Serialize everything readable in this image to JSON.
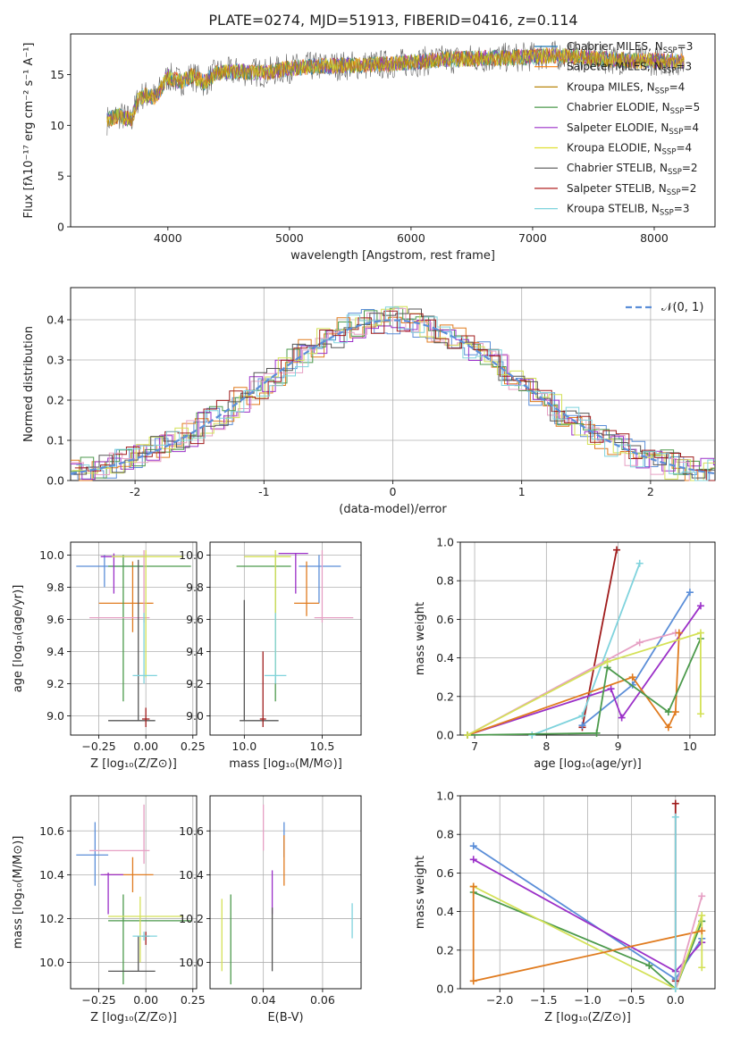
{
  "figure": {
    "title": "PLATE=0274, MJD=51913, FIBERID=0416, z=0.114"
  },
  "chart_data": [
    {
      "id": "spectrum",
      "type": "line",
      "xlabel": "wavelength [Angstrom, rest frame]",
      "ylabel": "Flux [fλ10⁻¹⁷ erg cm⁻² s⁻¹ A⁻¹]",
      "xlim": [
        3200,
        8500
      ],
      "ylim": [
        0,
        19
      ],
      "xticks": [
        4000,
        5000,
        6000,
        7000,
        8000
      ],
      "yticks": [
        0,
        5,
        10,
        15
      ],
      "grid": false,
      "legend_position": "right",
      "series": [
        {
          "name": "Chabrier MILES, N_SSP=3",
          "color": "#1f77b4"
        },
        {
          "name": "Salpeter MILES, N_SSP=3",
          "color": "#ff7f0e"
        },
        {
          "name": "Kroupa MILES, N_SSP=4",
          "color": "#b8860b"
        },
        {
          "name": "Chabrier ELODIE, N_SSP=5",
          "color": "#4c9a4c"
        },
        {
          "name": "Salpeter ELODIE, N_SSP=4",
          "color": "#9b30c8"
        },
        {
          "name": "Kroupa ELODIE, N_SSP=4",
          "color": "#e0e030"
        },
        {
          "name": "Chabrier STELIB, N_SSP=2",
          "color": "#555555"
        },
        {
          "name": "Salpeter STELIB, N_SSP=2",
          "color": "#b22222"
        },
        {
          "name": "Kroupa STELIB, N_SSP=3",
          "color": "#7fd3dd"
        }
      ],
      "continuum_points": [
        [
          3500,
          10.5
        ],
        [
          3600,
          11.0
        ],
        [
          3700,
          10.5
        ],
        [
          3750,
          12.5
        ],
        [
          3800,
          13.0
        ],
        [
          3900,
          12.8
        ],
        [
          4000,
          14.8
        ],
        [
          4100,
          14.3
        ],
        [
          4200,
          14.9
        ],
        [
          4300,
          14.2
        ],
        [
          4400,
          15.2
        ],
        [
          4600,
          15.3
        ],
        [
          4800,
          15.2
        ],
        [
          5000,
          15.6
        ],
        [
          5200,
          15.8
        ],
        [
          5500,
          15.9
        ],
        [
          5800,
          16.0
        ],
        [
          6000,
          16.2
        ],
        [
          6300,
          16.5
        ],
        [
          6600,
          16.6
        ],
        [
          6900,
          16.7
        ],
        [
          7200,
          16.9
        ],
        [
          7500,
          16.6
        ],
        [
          7800,
          16.4
        ],
        [
          8200,
          16.3
        ]
      ]
    },
    {
      "id": "residuals",
      "type": "histogram",
      "xlabel": "(data-model)/error",
      "ylabel": "Normed distribution",
      "xlim": [
        -2.5,
        2.5
      ],
      "ylim": [
        0,
        0.48
      ],
      "xticks": [
        -2,
        -1,
        0,
        1,
        2
      ],
      "yticks": [
        0.0,
        0.1,
        0.2,
        0.3,
        0.4
      ],
      "grid": true,
      "legend": "𝒩(0, 1)",
      "legend_position": "top-right",
      "reference_curve": {
        "type": "gaussian",
        "mean": 0,
        "sigma": 1,
        "color": "#5b8ed8"
      },
      "hist_colors": [
        "#5b8ed8",
        "#e07b1f",
        "#4c9a4c",
        "#9b30c8",
        "#e6a0c4",
        "#d4e157",
        "#555555",
        "#a01c1c",
        "#7fd3dd"
      ]
    },
    {
      "id": "age_vs_Z",
      "type": "errorbar",
      "xlabel": "Z [log₁₀(Z/Z⊙)]",
      "ylabel": "age  [log₁₀(age/yr)]",
      "xlim": [
        -0.4,
        0.27
      ],
      "ylim": [
        8.88,
        10.08
      ],
      "xticks": [
        -0.25,
        0.0,
        0.25
      ],
      "xticklabels": [
        "−0.25",
        "0.00",
        "0.25"
      ],
      "yticks": [
        9.0,
        9.2,
        9.4,
        9.6,
        9.8,
        10.0
      ],
      "grid": true,
      "points": [
        {
          "color": "#5b8ed8",
          "x": -0.22,
          "y": 9.93,
          "x_lo": -0.37,
          "x_hi": 0.0,
          "y_lo": 9.8,
          "y_hi": 10.0
        },
        {
          "color": "#e07b1f",
          "x": -0.07,
          "y": 9.7,
          "x_lo": -0.25,
          "x_hi": 0.04,
          "y_lo": 9.52,
          "y_hi": 9.96
        },
        {
          "color": "#4c9a4c",
          "x": -0.12,
          "y": 9.93,
          "x_lo": -0.2,
          "x_hi": 0.24,
          "y_lo": 9.09,
          "y_hi": 10.0
        },
        {
          "color": "#9b30c8",
          "x": -0.17,
          "y": 9.99,
          "x_lo": -0.24,
          "x_hi": 0.0,
          "y_lo": 9.76,
          "y_hi": 10.01
        },
        {
          "color": "#e6a0c4",
          "x": -0.01,
          "y": 9.61,
          "x_lo": -0.3,
          "x_hi": 0.02,
          "y_lo": 9.58,
          "y_hi": 10.03
        },
        {
          "color": "#d4e157",
          "x": 0.0,
          "y": 9.99,
          "x_lo": -0.18,
          "x_hi": 0.2,
          "y_lo": 9.24,
          "y_hi": 10.03
        },
        {
          "color": "#555555",
          "x": -0.04,
          "y": 8.97,
          "x_lo": -0.2,
          "x_hi": 0.05,
          "y_lo": 8.97,
          "y_hi": 9.97
        },
        {
          "color": "#a01c1c",
          "x": 0.0,
          "y": 8.98,
          "x_lo": -0.02,
          "x_hi": 0.02,
          "y_lo": 8.93,
          "y_hi": 9.05
        },
        {
          "color": "#7fd3dd",
          "x": -0.01,
          "y": 9.25,
          "x_lo": -0.07,
          "x_hi": 0.06,
          "y_lo": 9.2,
          "y_hi": 9.64
        }
      ]
    },
    {
      "id": "age_vs_mass",
      "type": "errorbar",
      "xlabel": "mass [log₁₀(M/M⊙)]",
      "ylabel": "",
      "xlim": [
        9.78,
        10.75
      ],
      "ylim": [
        8.88,
        10.08
      ],
      "xticks": [
        10.0,
        10.5
      ],
      "xticklabels": [
        "10.0",
        "10.5"
      ],
      "yticks": [
        9.0,
        9.2,
        9.4,
        9.6,
        9.8,
        10.0
      ],
      "grid": true,
      "points": [
        {
          "color": "#5b8ed8",
          "x": 10.48,
          "y": 9.93,
          "x_lo": 10.35,
          "x_hi": 10.62,
          "y_lo": 9.7,
          "y_hi": 10.0
        },
        {
          "color": "#e07b1f",
          "x": 10.4,
          "y": 9.7,
          "x_lo": 10.32,
          "x_hi": 10.48,
          "y_lo": 9.62,
          "y_hi": 9.96
        },
        {
          "color": "#4c9a4c",
          "x": 10.2,
          "y": 9.93,
          "x_lo": 9.95,
          "x_hi": 10.3,
          "y_lo": 9.09,
          "y_hi": 10.0
        },
        {
          "color": "#9b30c8",
          "x": 10.33,
          "y": 10.01,
          "x_lo": 10.22,
          "x_hi": 10.41,
          "y_lo": 9.76,
          "y_hi": 10.01
        },
        {
          "color": "#e6a0c4",
          "x": 10.5,
          "y": 9.61,
          "x_lo": 10.45,
          "x_hi": 10.7,
          "y_lo": 9.58,
          "y_hi": 10.03
        },
        {
          "color": "#d4e157",
          "x": 10.2,
          "y": 9.99,
          "x_lo": 10.0,
          "x_hi": 10.3,
          "y_lo": 9.24,
          "y_hi": 10.03
        },
        {
          "color": "#555555",
          "x": 10.0,
          "y": 8.97,
          "x_lo": 9.97,
          "x_hi": 10.22,
          "y_lo": 8.97,
          "y_hi": 9.72
        },
        {
          "color": "#a01c1c",
          "x": 10.12,
          "y": 8.98,
          "x_lo": 10.1,
          "x_hi": 10.14,
          "y_lo": 8.93,
          "y_hi": 9.4
        },
        {
          "color": "#7fd3dd",
          "x": 10.2,
          "y": 9.25,
          "x_lo": 10.13,
          "x_hi": 10.27,
          "y_lo": 9.2,
          "y_hi": 9.64
        }
      ]
    },
    {
      "id": "mw_vs_age",
      "type": "line",
      "xlabel": "age  [log₁₀(age/yr)]",
      "ylabel": "mass weight",
      "xlim": [
        6.8,
        10.35
      ],
      "ylim": [
        0,
        1
      ],
      "xticks": [
        7,
        8,
        9,
        10
      ],
      "yticks": [
        0.0,
        0.2,
        0.4,
        0.6,
        0.8,
        1.0
      ],
      "grid": true,
      "series": [
        {
          "color": "#a01c1c",
          "x": [
            8.5,
            8.98
          ],
          "y": [
            0.04,
            0.96
          ]
        },
        {
          "color": "#7fd3dd",
          "x": [
            7.8,
            8.5,
            9.3
          ],
          "y": [
            0.0,
            0.1,
            0.89
          ]
        },
        {
          "color": "#5b8ed8",
          "x": [
            8.5,
            9.2,
            10.0
          ],
          "y": [
            0.05,
            0.26,
            0.74
          ]
        },
        {
          "color": "#9b30c8",
          "x": [
            6.9,
            8.9,
            9.05,
            10.15
          ],
          "y": [
            0.0,
            0.24,
            0.09,
            0.67
          ]
        },
        {
          "color": "#e6a0c4",
          "x": [
            6.9,
            9.3,
            9.8
          ],
          "y": [
            0.0,
            0.48,
            0.53
          ]
        },
        {
          "color": "#e07b1f",
          "x": [
            6.9,
            9.2,
            9.7,
            9.8,
            9.85
          ],
          "y": [
            0.0,
            0.3,
            0.04,
            0.12,
            0.53
          ]
        },
        {
          "color": "#4c9a4c",
          "x": [
            6.9,
            8.7,
            8.85,
            9.7,
            10.15
          ],
          "y": [
            0.0,
            0.01,
            0.35,
            0.12,
            0.5
          ]
        },
        {
          "color": "#d4e157",
          "x": [
            6.9,
            8.85,
            10.15,
            10.15
          ],
          "y": [
            0.0,
            0.38,
            0.53,
            0.11
          ]
        }
      ]
    },
    {
      "id": "mass_vs_Z",
      "type": "errorbar",
      "xlabel": "Z [log₁₀(Z/Z⊙)]",
      "ylabel": "mass [log₁₀(M/M⊙)]",
      "xlim": [
        -0.4,
        0.27
      ],
      "ylim": [
        9.88,
        10.76
      ],
      "xticks": [
        -0.25,
        0.0,
        0.25
      ],
      "xticklabels": [
        "−0.25",
        "0.00",
        "0.25"
      ],
      "yticks": [
        10.0,
        10.2,
        10.4,
        10.6
      ],
      "grid": true,
      "points": [
        {
          "color": "#5b8ed8",
          "x": -0.27,
          "y": 10.49,
          "x_lo": -0.37,
          "x_hi": -0.2,
          "y_lo": 10.35,
          "y_hi": 10.64
        },
        {
          "color": "#e07b1f",
          "x": -0.07,
          "y": 10.4,
          "x_lo": -0.22,
          "x_hi": 0.04,
          "y_lo": 10.32,
          "y_hi": 10.48
        },
        {
          "color": "#4c9a4c",
          "x": -0.12,
          "y": 10.19,
          "x_lo": -0.2,
          "x_hi": 0.24,
          "y_lo": 9.9,
          "y_hi": 10.31
        },
        {
          "color": "#9b30c8",
          "x": -0.2,
          "y": 10.4,
          "x_lo": -0.24,
          "x_hi": -0.12,
          "y_lo": 10.22,
          "y_hi": 10.41
        },
        {
          "color": "#e6a0c4",
          "x": -0.01,
          "y": 10.51,
          "x_lo": -0.3,
          "x_hi": 0.02,
          "y_lo": 10.45,
          "y_hi": 10.72
        },
        {
          "color": "#d4e157",
          "x": -0.03,
          "y": 10.21,
          "x_lo": -0.2,
          "x_hi": 0.2,
          "y_lo": 10.0,
          "y_hi": 10.3
        },
        {
          "color": "#555555",
          "x": -0.04,
          "y": 9.96,
          "x_lo": -0.2,
          "x_hi": 0.05,
          "y_lo": 9.96,
          "y_hi": 10.12
        },
        {
          "color": "#a01c1c",
          "x": 0.0,
          "y": 10.12,
          "x_lo": -0.02,
          "x_hi": 0.02,
          "y_lo": 10.08,
          "y_hi": 10.14
        },
        {
          "color": "#7fd3dd",
          "x": -0.01,
          "y": 10.12,
          "x_lo": -0.07,
          "x_hi": 0.06,
          "y_lo": 10.1,
          "y_hi": 10.14
        }
      ]
    },
    {
      "id": "mass_vs_ebv",
      "type": "errorbar",
      "xlabel": "E(B-V)",
      "ylabel": "",
      "xlim": [
        0.022,
        0.073
      ],
      "ylim": [
        9.88,
        10.76
      ],
      "xticks": [
        0.02,
        0.04,
        0.06
      ],
      "xticklabels": [
        "0.02",
        "0.04",
        "0.06"
      ],
      "yticks": [
        10.0,
        10.2,
        10.4,
        10.6
      ],
      "grid": true,
      "points": [
        {
          "color": "#d4e157",
          "x": 0.026,
          "y": 10.1,
          "x_lo": 0.026,
          "x_hi": 0.026,
          "y_lo": 9.96,
          "y_hi": 10.29
        },
        {
          "color": "#4c9a4c",
          "x": 0.029,
          "y": 10.1,
          "x_lo": 0.029,
          "x_hi": 0.029,
          "y_lo": 9.9,
          "y_hi": 10.31
        },
        {
          "color": "#e6a0c4",
          "x": 0.04,
          "y": 10.6,
          "x_lo": 0.04,
          "x_hi": 0.04,
          "y_lo": 10.51,
          "y_hi": 10.72
        },
        {
          "color": "#9b30c8",
          "x": 0.043,
          "y": 10.3,
          "x_lo": 0.043,
          "x_hi": 0.043,
          "y_lo": 10.22,
          "y_hi": 10.42
        },
        {
          "color": "#555555",
          "x": 0.043,
          "y": 10.1,
          "x_lo": 0.043,
          "x_hi": 0.043,
          "y_lo": 9.96,
          "y_hi": 10.25
        },
        {
          "color": "#5b8ed8",
          "x": 0.047,
          "y": 10.55,
          "x_lo": 0.047,
          "x_hi": 0.047,
          "y_lo": 10.48,
          "y_hi": 10.64
        },
        {
          "color": "#e07b1f",
          "x": 0.047,
          "y": 10.45,
          "x_lo": 0.047,
          "x_hi": 0.047,
          "y_lo": 10.35,
          "y_hi": 10.58
        },
        {
          "color": "#7fd3dd",
          "x": 0.07,
          "y": 10.2,
          "x_lo": 0.07,
          "x_hi": 0.07,
          "y_lo": 10.11,
          "y_hi": 10.27
        }
      ]
    },
    {
      "id": "mw_vs_Z",
      "type": "line",
      "xlabel": "Z [log₁₀(Z/Z⊙)]",
      "ylabel": "mass weight",
      "xlim": [
        -2.45,
        0.45
      ],
      "ylim": [
        0,
        1
      ],
      "xticks": [
        -2.0,
        -1.5,
        -1.0,
        -0.5,
        0.0
      ],
      "xticklabels": [
        "−2.0",
        "−1.5",
        "−1.0",
        "−0.5",
        "0.0"
      ],
      "yticks": [
        0.0,
        0.2,
        0.4,
        0.6,
        0.8,
        1.0
      ],
      "grid": true,
      "series": [
        {
          "color": "#5b8ed8",
          "x": [
            -2.3,
            0.0,
            0.3
          ],
          "y": [
            0.74,
            0.05,
            0.26
          ]
        },
        {
          "color": "#9b30c8",
          "x": [
            -2.3,
            0.0,
            0.3
          ],
          "y": [
            0.67,
            0.09,
            0.24
          ]
        },
        {
          "color": "#4c9a4c",
          "x": [
            -2.3,
            -0.3,
            0.0,
            0.3
          ],
          "y": [
            0.5,
            0.12,
            0.0,
            0.35
          ]
        },
        {
          "color": "#d4e157",
          "x": [
            -2.3,
            0.0,
            0.3,
            0.3
          ],
          "y": [
            0.53,
            0.0,
            0.38,
            0.11
          ]
        },
        {
          "color": "#e07b1f",
          "x": [
            -2.3,
            -2.3,
            0.3
          ],
          "y": [
            0.53,
            0.04,
            0.3
          ]
        },
        {
          "color": "#e6a0c4",
          "x": [
            0.0,
            0.3
          ],
          "y": [
            0.0,
            0.48
          ]
        },
        {
          "color": "#a01c1c",
          "x": [
            0.0,
            0.0
          ],
          "y": [
            0.04,
            0.96
          ]
        },
        {
          "color": "#7fd3dd",
          "x": [
            0.0,
            0.0
          ],
          "y": [
            0.0,
            0.89
          ]
        }
      ]
    }
  ]
}
